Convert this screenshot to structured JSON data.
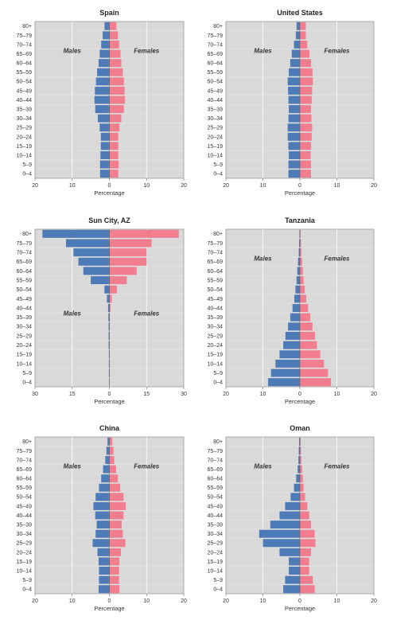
{
  "chart_data": [
    {
      "type": "bar",
      "orientation": "horizontal-population-pyramid",
      "title": "Spain",
      "xlabel": "Percentage",
      "xlim": [
        -20,
        20
      ],
      "xticks": [
        "20",
        "10",
        "0",
        "10",
        "20"
      ],
      "male_label": "Males",
      "female_label": "Females",
      "categories": [
        "80+",
        "75–79",
        "70–74",
        "65–69",
        "60–64",
        "55–59",
        "50–54",
        "45–49",
        "40–44",
        "35–39",
        "30–34",
        "25–29",
        "20–24",
        "15–19",
        "10–14",
        "5–9",
        "0–4"
      ],
      "series": [
        {
          "name": "Males",
          "color": "#4c7bb8",
          "values": [
            1.3,
            1.8,
            2.2,
            2.6,
            2.9,
            3.3,
            3.6,
            3.9,
            4.0,
            3.8,
            3.1,
            2.6,
            2.3,
            2.3,
            2.4,
            2.5,
            2.5
          ]
        },
        {
          "name": "Females",
          "color": "#f17d8f",
          "values": [
            1.9,
            2.3,
            2.6,
            3.0,
            3.2,
            3.6,
            3.9,
            4.1,
            4.2,
            3.9,
            3.2,
            2.7,
            2.4,
            2.4,
            2.4,
            2.5,
            2.4
          ]
        }
      ]
    },
    {
      "type": "bar",
      "orientation": "horizontal-population-pyramid",
      "title": "United States",
      "xlabel": "Percentage",
      "xlim": [
        -20,
        20
      ],
      "xticks": [
        "20",
        "10",
        "0",
        "10",
        "20"
      ],
      "male_label": "Males",
      "female_label": "Females",
      "categories": [
        "80+",
        "75–79",
        "70–74",
        "65–69",
        "60–64",
        "55–59",
        "50–54",
        "45–49",
        "40–44",
        "35–39",
        "30–34",
        "25–29",
        "20–24",
        "15–19",
        "10–14",
        "5–9",
        "0–4"
      ],
      "series": [
        {
          "name": "Males",
          "color": "#4c7bb8",
          "values": [
            0.9,
            1.1,
            1.6,
            2.2,
            2.6,
            3.0,
            3.3,
            3.2,
            3.1,
            3.0,
            3.1,
            3.3,
            3.3,
            3.1,
            3.0,
            3.1,
            3.1
          ]
        },
        {
          "name": "Females",
          "color": "#f17d8f",
          "values": [
            1.6,
            1.6,
            2.0,
            2.6,
            3.0,
            3.4,
            3.5,
            3.3,
            3.2,
            3.0,
            3.1,
            3.3,
            3.2,
            3.0,
            2.9,
            3.0,
            3.0
          ]
        }
      ]
    },
    {
      "type": "bar",
      "orientation": "horizontal-population-pyramid",
      "title": "Sun City, AZ",
      "xlabel": "Percentage",
      "xlim": [
        -30,
        30
      ],
      "xticks": [
        "30",
        "15",
        "0",
        "15",
        "30"
      ],
      "male_label": "Males",
      "female_label": "Females",
      "categories": [
        "80+",
        "75–79",
        "70–74",
        "65–69",
        "60–64",
        "55–59",
        "50–54",
        "45–49",
        "40–44",
        "35–39",
        "30–34",
        "25–29",
        "20–24",
        "15–19",
        "10–14",
        "5–9",
        "0–4"
      ],
      "series": [
        {
          "name": "Males",
          "color": "#4c7bb8",
          "values": [
            27,
            17.5,
            14.5,
            12.5,
            10.5,
            7.5,
            2,
            1,
            0.5,
            0.4,
            0.3,
            0.3,
            0.3,
            0.2,
            0.2,
            0.2,
            0.1
          ]
        },
        {
          "name": "Females",
          "color": "#f17d8f",
          "values": [
            28,
            17,
            15,
            15,
            11,
            7,
            3,
            1,
            0.5,
            0.2,
            0.1,
            0.1,
            0.1,
            0.1,
            0.1,
            0.1,
            0.1
          ]
        }
      ]
    },
    {
      "type": "bar",
      "orientation": "horizontal-population-pyramid",
      "title": "Tanzania",
      "xlabel": "Percentage",
      "xlim": [
        -20,
        20
      ],
      "xticks": [
        "20",
        "10",
        "0",
        "10",
        "20"
      ],
      "male_label": "Males",
      "female_label": "Females",
      "categories": [
        "80+",
        "75–79",
        "70–74",
        "65–69",
        "60–64",
        "55–59",
        "50–54",
        "45–49",
        "40–44",
        "35–39",
        "30–34",
        "25–29",
        "20–24",
        "15–19",
        "10–14",
        "5–9",
        "0–4"
      ],
      "series": [
        {
          "name": "Males",
          "color": "#4c7bb8",
          "values": [
            0.1,
            0.2,
            0.3,
            0.5,
            0.7,
            0.9,
            1.2,
            1.5,
            2.0,
            2.6,
            3.2,
            3.9,
            4.5,
            5.5,
            6.6,
            7.8,
            8.6
          ]
        },
        {
          "name": "Females",
          "color": "#f17d8f",
          "values": [
            0.2,
            0.3,
            0.4,
            0.6,
            0.8,
            1.0,
            1.3,
            1.7,
            2.2,
            2.8,
            3.4,
            4.1,
            4.6,
            5.5,
            6.5,
            7.6,
            8.4
          ]
        }
      ]
    },
    {
      "type": "bar",
      "orientation": "horizontal-population-pyramid",
      "title": "China",
      "xlabel": "Percentage",
      "xlim": [
        -20,
        20
      ],
      "xticks": [
        "20",
        "10",
        "0",
        "10",
        "20"
      ],
      "male_label": "Males",
      "female_label": "Females",
      "categories": [
        "80+",
        "75–79",
        "70–74",
        "65–69",
        "60–64",
        "55–59",
        "50–54",
        "45–49",
        "40–44",
        "35–39",
        "30–34",
        "25–29",
        "20–24",
        "15–19",
        "10–14",
        "5–9",
        "0–4"
      ],
      "series": [
        {
          "name": "Males",
          "color": "#4c7bb8",
          "values": [
            0.5,
            0.8,
            1.1,
            1.7,
            2.2,
            2.8,
            3.7,
            4.3,
            3.8,
            3.4,
            3.7,
            4.5,
            3.2,
            2.9,
            2.8,
            2.8,
            2.9
          ]
        },
        {
          "name": "Females",
          "color": "#f17d8f",
          "values": [
            0.8,
            1.1,
            1.3,
            1.8,
            2.3,
            2.9,
            3.8,
            4.4,
            3.8,
            3.3,
            3.6,
            4.3,
            3.1,
            2.7,
            2.6,
            2.6,
            2.7
          ]
        }
      ]
    },
    {
      "type": "bar",
      "orientation": "horizontal-population-pyramid",
      "title": "Oman",
      "xlabel": "Percentage",
      "xlim": [
        -20,
        20
      ],
      "xticks": [
        "20",
        "10",
        "0",
        "10",
        "20"
      ],
      "male_label": "Males",
      "female_label": "Females",
      "categories": [
        "80+",
        "75–79",
        "70–74",
        "65–69",
        "60–64",
        "55–59",
        "50–54",
        "45–49",
        "40–44",
        "35–39",
        "30–34",
        "25–29",
        "20–24",
        "15–19",
        "10–14",
        "5–9",
        "0–4"
      ],
      "series": [
        {
          "name": "Males",
          "color": "#4c7bb8",
          "values": [
            0.2,
            0.3,
            0.4,
            0.6,
            1.0,
            1.6,
            2.5,
            4.0,
            5.5,
            8.0,
            11.0,
            10.0,
            5.5,
            3.0,
            3.0,
            4.0,
            4.5
          ]
        },
        {
          "name": "Females",
          "color": "#f17d8f",
          "values": [
            0.2,
            0.3,
            0.4,
            0.6,
            0.8,
            1.0,
            1.4,
            2.0,
            2.5,
            3.0,
            4.0,
            4.2,
            3.0,
            2.5,
            2.5,
            3.5,
            4.0
          ]
        }
      ]
    }
  ]
}
